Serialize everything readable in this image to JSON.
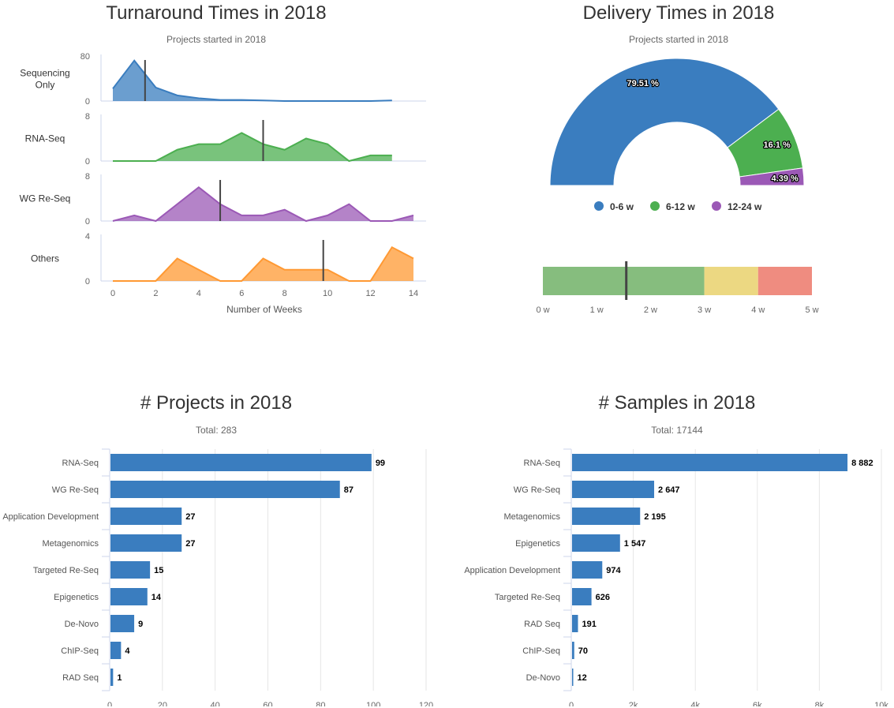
{
  "turnaround": {
    "title": "Turnaround Times in 2018",
    "subtitle": "Projects started in 2018",
    "xlabel": "Number of Weeks",
    "xticks": [
      0,
      2,
      4,
      6,
      8,
      10,
      12,
      14
    ]
  },
  "delivery": {
    "title": "Delivery Times in 2018",
    "subtitle": "Projects started in 2018"
  },
  "projects": {
    "title": "# Projects in 2018",
    "subtitle": "Total: 283"
  },
  "samples": {
    "title": "# Samples in 2018",
    "subtitle": "Total: 17144"
  },
  "chart_data": [
    {
      "type": "area",
      "name": "turnaround-times",
      "title": "Turnaround Times in 2018",
      "subtitle": "Projects started in 2018",
      "xlabel": "Number of Weeks",
      "xlim": [
        0,
        14
      ],
      "grid": false,
      "series": [
        {
          "name": "Sequencing Only",
          "color": "#3a7dbf",
          "ylim": [
            0,
            80
          ],
          "yticks": [
            0,
            80
          ],
          "x": [
            0,
            1,
            2,
            3,
            4,
            5,
            6,
            7,
            8,
            9,
            10,
            11,
            12,
            13
          ],
          "values": [
            22,
            72,
            24,
            10,
            5,
            2,
            2,
            1,
            0,
            0,
            0,
            0,
            0,
            1
          ],
          "median": 1.5
        },
        {
          "name": "RNA-Seq",
          "color": "#4caf50",
          "ylim": [
            0,
            8
          ],
          "yticks": [
            0,
            8
          ],
          "x": [
            0,
            1,
            2,
            3,
            4,
            5,
            6,
            7,
            8,
            9,
            10,
            11,
            12,
            13
          ],
          "values": [
            0,
            0,
            0,
            2,
            3,
            3,
            5,
            3,
            2,
            4,
            3,
            0,
            1,
            1
          ],
          "median": 7
        },
        {
          "name": "WG Re-Seq",
          "color": "#9b59b6",
          "ylim": [
            0,
            8
          ],
          "yticks": [
            0,
            8
          ],
          "x": [
            0,
            1,
            2,
            3,
            4,
            5,
            6,
            7,
            8,
            9,
            10,
            11,
            12,
            13,
            14
          ],
          "values": [
            0,
            1,
            0,
            3,
            6,
            3,
            1,
            1,
            2,
            0,
            1,
            3,
            0,
            0,
            1
          ],
          "median": 5
        },
        {
          "name": "Others",
          "color": "#ff9933",
          "ylim": [
            0,
            4
          ],
          "yticks": [
            0,
            4
          ],
          "x": [
            0,
            1,
            2,
            3,
            4,
            5,
            6,
            7,
            8,
            9,
            10,
            11,
            12,
            13,
            14
          ],
          "values": [
            0,
            0,
            0,
            2,
            1,
            0,
            0,
            2,
            1,
            1,
            1,
            0,
            0,
            3,
            2
          ],
          "median": 9.8
        }
      ]
    },
    {
      "type": "pie",
      "name": "delivery-times",
      "title": "Delivery Times in 2018",
      "subtitle": "Projects started in 2018",
      "legend": "bottom",
      "slices": [
        {
          "name": "0-6 w",
          "value": 79.51,
          "label": "79.51 %",
          "color": "#3a7dbf"
        },
        {
          "name": "6-12 w",
          "value": 16.1,
          "label": "16.1 %",
          "color": "#4caf50"
        },
        {
          "name": "12-24 w",
          "value": 4.39,
          "label": "4.39 %",
          "color": "#9b59b6"
        }
      ]
    },
    {
      "type": "bar",
      "name": "delivery-gauge",
      "xlim": [
        0,
        5
      ],
      "xticks": [
        "0 w",
        "1 w",
        "2 w",
        "3 w",
        "4 w",
        "5 w"
      ],
      "bands": [
        {
          "from": 0,
          "to": 3,
          "color": "#86bd7e"
        },
        {
          "from": 3,
          "to": 4,
          "color": "#ecd882"
        },
        {
          "from": 4,
          "to": 5,
          "color": "#ef8c80"
        }
      ],
      "marker": 1.55
    },
    {
      "type": "bar",
      "name": "projects",
      "title": "# Projects in 2018",
      "subtitle": "Total: 283",
      "orientation": "horizontal",
      "color": "#3a7dbf",
      "categories": [
        "RNA-Seq",
        "WG Re-Seq",
        "Application Development",
        "Metagenomics",
        "Targeted Re-Seq",
        "Epigenetics",
        "De-Novo",
        "ChIP-Seq",
        "RAD Seq"
      ],
      "values": [
        99,
        87,
        27,
        27,
        15,
        14,
        9,
        4,
        1
      ],
      "labels": [
        "99",
        "87",
        "27",
        "27",
        "15",
        "14",
        "9",
        "4",
        "1"
      ],
      "xlim": [
        0,
        120
      ],
      "xticks": [
        "0",
        "20",
        "40",
        "60",
        "80",
        "100",
        "120"
      ],
      "grid": true
    },
    {
      "type": "bar",
      "name": "samples",
      "title": "# Samples in 2018",
      "subtitle": "Total: 17144",
      "orientation": "horizontal",
      "color": "#3a7dbf",
      "categories": [
        "RNA-Seq",
        "WG Re-Seq",
        "Metagenomics",
        "Epigenetics",
        "Application Development",
        "Targeted Re-Seq",
        "RAD Seq",
        "ChIP-Seq",
        "De-Novo"
      ],
      "values": [
        8882,
        2647,
        2195,
        1547,
        974,
        626,
        191,
        70,
        12
      ],
      "labels": [
        "8 882",
        "2 647",
        "2 195",
        "1 547",
        "974",
        "626",
        "191",
        "70",
        "12"
      ],
      "xlim": [
        0,
        10000
      ],
      "xticks": [
        "0",
        "2k",
        "4k",
        "6k",
        "8k",
        "10k"
      ],
      "grid": true
    }
  ]
}
